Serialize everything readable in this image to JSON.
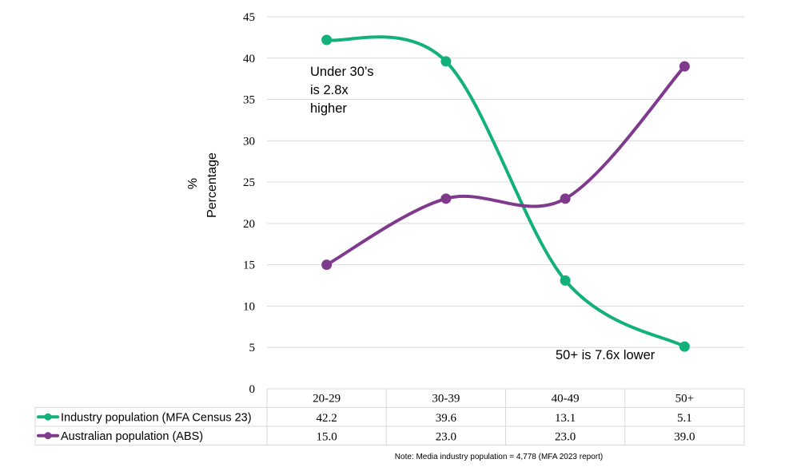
{
  "chart_data": {
    "type": "line",
    "categories": [
      "20-29",
      "30-39",
      "40-49",
      "50+"
    ],
    "series": [
      {
        "name": "Industry population (MFA Census 23)",
        "values": [
          42.2,
          39.6,
          13.1,
          5.1
        ],
        "display": [
          "42.2",
          "39.6",
          "13.1",
          "5.1"
        ],
        "color": "#12b07a"
      },
      {
        "name": "Australian population (ABS)",
        "values": [
          15.0,
          23.0,
          23.0,
          39.0
        ],
        "display": [
          "15.0",
          "23.0",
          "23.0",
          "39.0"
        ],
        "color": "#7f3a8e"
      }
    ],
    "ylabel_line1": "%",
    "ylabel_line2": "Percentage",
    "ylim": [
      0,
      45
    ],
    "yticks": [
      0,
      5,
      10,
      15,
      20,
      25,
      30,
      35,
      40,
      45
    ],
    "grid": true,
    "legend": "data table",
    "annotations": [
      {
        "lines": [
          "Under 30’s",
          "is 2.8x",
          "higher"
        ]
      },
      {
        "lines": [
          "50+ is 7.6x lower"
        ]
      }
    ],
    "note": "Note: Media industry population = 4,778 (MFA 2023 report)"
  }
}
